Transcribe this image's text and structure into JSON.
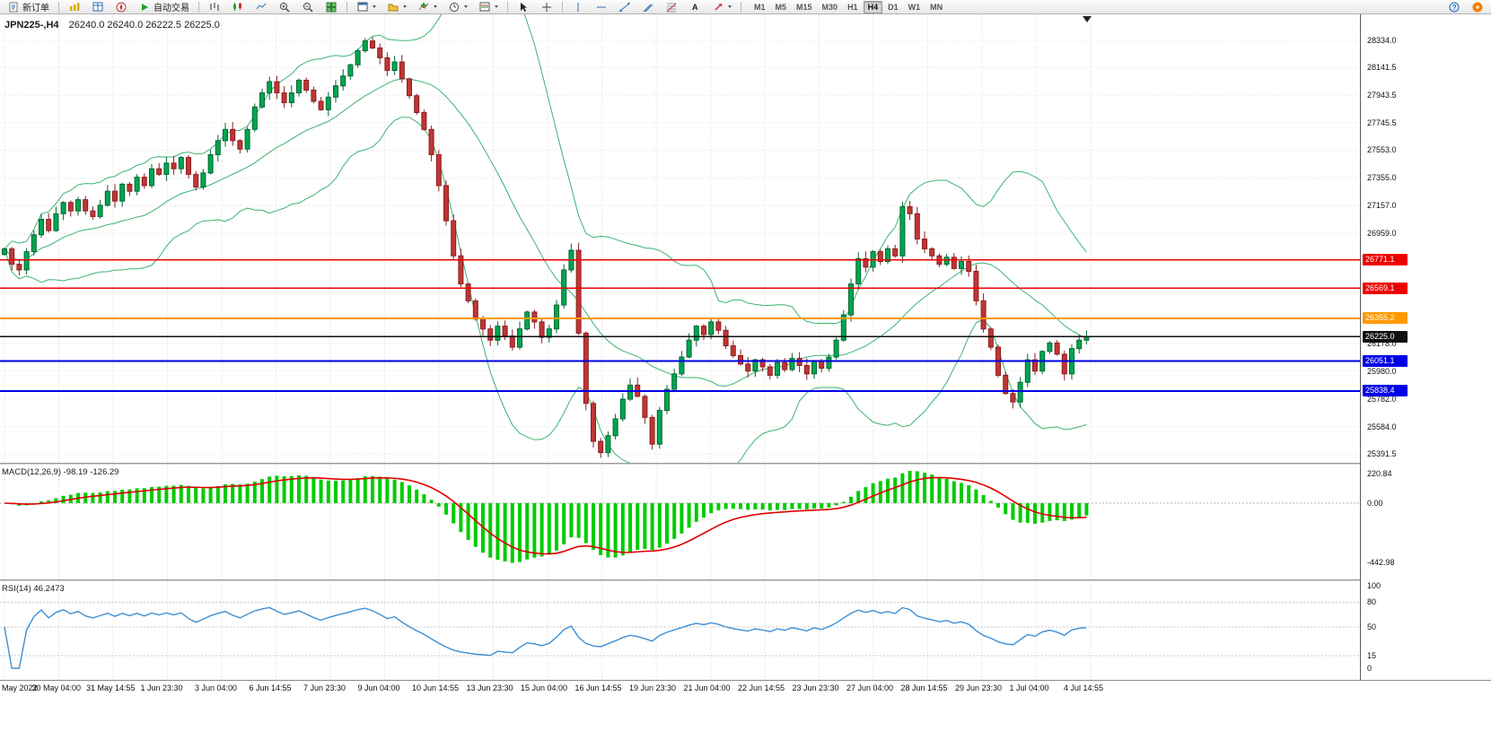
{
  "toolbar": {
    "new_order_label": "新订单",
    "autotrade_label": "自动交易",
    "timeframes": [
      "M1",
      "M5",
      "M15",
      "M30",
      "H1",
      "H4",
      "D1",
      "W1",
      "MN"
    ],
    "active_timeframe": "H4"
  },
  "chart": {
    "title_symbol": "JPN225-,H4",
    "title_ohlc": "26240.0 26240.0 26222.5 26225.0"
  },
  "chart_data": {
    "type": "candlestick",
    "symbol": "JPN225-",
    "timeframe": "H4",
    "price_axis": {
      "labels": [
        "28334.0",
        "28141.5",
        "27943.5",
        "27745.5",
        "27553.0",
        "27355.0",
        "27157.0",
        "26959.0",
        "26178.0",
        "25980.0",
        "25782.0",
        "25584.0",
        "25391.5"
      ],
      "ylim": [
        25327,
        28519
      ]
    },
    "closes": [
      26850,
      26740,
      26700,
      26830,
      26950,
      27060,
      26980,
      27100,
      27180,
      27120,
      27200,
      27120,
      27080,
      27160,
      27260,
      27190,
      27310,
      27260,
      27360,
      27300,
      27420,
      27380,
      27460,
      27420,
      27500,
      27380,
      27290,
      27390,
      27520,
      27620,
      27700,
      27620,
      27560,
      27700,
      27860,
      27960,
      28040,
      27960,
      27890,
      27960,
      28050,
      27980,
      27900,
      27840,
      27930,
      28010,
      28080,
      28160,
      28260,
      28330,
      28280,
      28210,
      28120,
      28180,
      28060,
      27940,
      27820,
      27700,
      27520,
      27300,
      27050,
      26800,
      26600,
      26480,
      26350,
      26280,
      26200,
      26300,
      26230,
      26150,
      26280,
      26400,
      26330,
      26220,
      26280,
      26450,
      26700,
      26840,
      26250,
      25750,
      25480,
      25400,
      25520,
      25640,
      25780,
      25880,
      25800,
      25650,
      25460,
      25700,
      25850,
      25960,
      26080,
      26200,
      26300,
      26240,
      26330,
      26270,
      26160,
      26090,
      26030,
      25980,
      26060,
      26010,
      25950,
      26040,
      25990,
      26070,
      26020,
      25960,
      26050,
      26000,
      26080,
      26200,
      26380,
      26600,
      26780,
      26720,
      26830,
      26760,
      26850,
      26800,
      27150,
      27100,
      26920,
      26850,
      26800,
      26740,
      26790,
      26710,
      26760,
      26690,
      26480,
      26280,
      26150,
      25950,
      25820,
      25760,
      25900,
      26060,
      25980,
      26120,
      26180,
      26100,
      25960,
      26140,
      26200,
      26225
    ],
    "candle_colors": {
      "up": "#00a651",
      "down": "#c13535",
      "up_border": "#00662f",
      "down_border": "#8a1f1f"
    },
    "bollinger": {
      "period": 20,
      "deviation": 2,
      "color": "#3CB371"
    },
    "hlines": [
      {
        "price": 26771.1,
        "label": "26771.1",
        "color": "#ee0000",
        "width": 1.5
      },
      {
        "price": 26569.1,
        "label": "26569.1",
        "color": "#ee0000",
        "width": 1.5
      },
      {
        "price": 26355.2,
        "label": "26355.2",
        "color": "#ff9900",
        "width": 2
      },
      {
        "price": 26225.0,
        "label": "26225.0",
        "color": "#101010",
        "width": 1.5
      },
      {
        "price": 26051.1,
        "label": "26051.1",
        "color": "#0000e6",
        "width": 2
      },
      {
        "price": 25838.4,
        "label": "25838.4",
        "color": "#0000e6",
        "width": 2
      }
    ],
    "macd": {
      "label": "MACD(12,26,9)",
      "values_text": "-98.19 -126.29",
      "axis": [
        "220.84",
        "0.00",
        "-442.98"
      ],
      "hist_color": "#00cc00",
      "signal_color": "#e00000"
    },
    "rsi": {
      "label": "RSI(14)",
      "value_text": "46.2473",
      "axis": [
        "100",
        "80",
        "50",
        "15",
        "0"
      ],
      "levels": [
        80,
        50,
        15
      ],
      "color": "#3E8FD4"
    },
    "time_axis": [
      "May 2022",
      "30 May 04:00",
      "31 May 14:55",
      "1 Jun 23:30",
      "3 Jun 04:00",
      "6 Jun 14:55",
      "7 Jun 23:30",
      "9 Jun 04:00",
      "10 Jun 14:55",
      "13 Jun 23:30",
      "15 Jun 04:00",
      "16 Jun 14:55",
      "19 Jun 23:30",
      "21 Jun 04:00",
      "22 Jun 14:55",
      "23 Jun 23:30",
      "27 Jun 04:00",
      "28 Jun 14:55",
      "29 Jun 23:30",
      "1 Jul 04:00",
      "4 Jul 14:55"
    ]
  }
}
